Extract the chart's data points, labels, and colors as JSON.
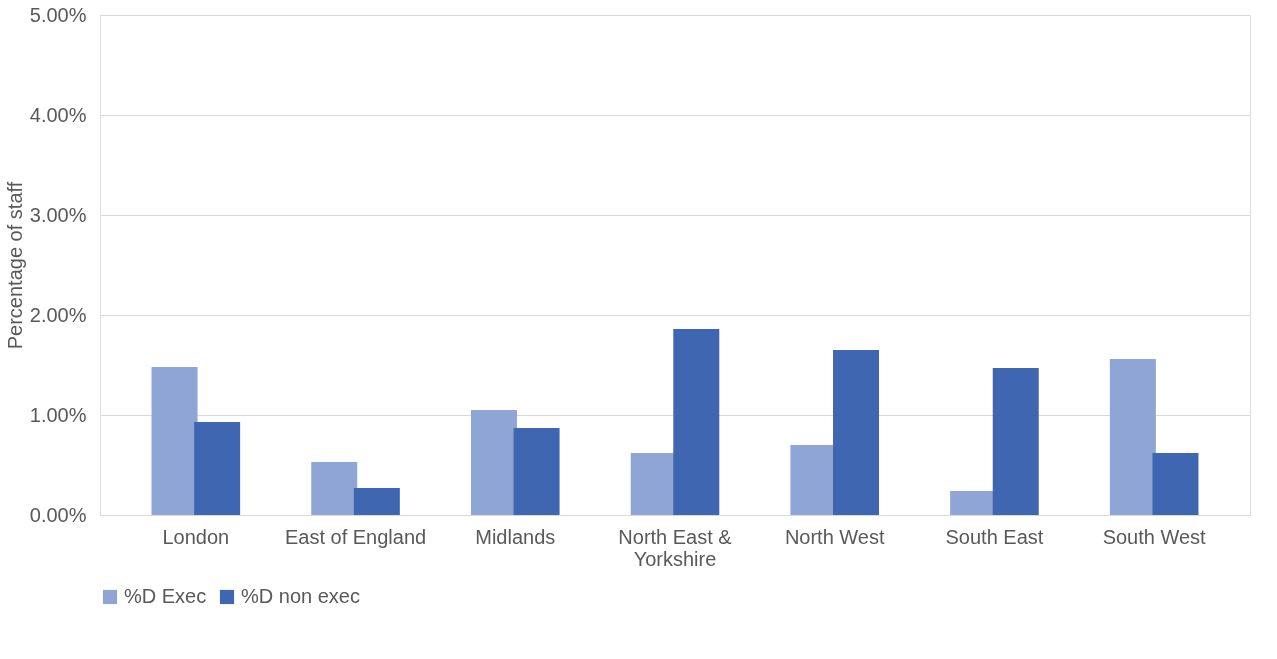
{
  "chart_data": {
    "type": "bar",
    "ylabel": "Percentage of staff",
    "categories": [
      "London",
      "East of England",
      "Midlands",
      "North East & Yorkshire",
      "North West",
      "South East",
      "South West"
    ],
    "series": [
      {
        "name": "%D Exec",
        "color": "#8fa5d6",
        "values": [
          1.48,
          0.53,
          1.05,
          0.62,
          0.7,
          0.24,
          1.56
        ]
      },
      {
        "name": "%D non exec",
        "color": "#3f66b0",
        "values": [
          0.93,
          0.27,
          0.87,
          1.86,
          1.65,
          1.47,
          0.62
        ]
      }
    ],
    "ylim": [
      0,
      5
    ],
    "yticks": [
      {
        "value": 0,
        "label": "0.00%"
      },
      {
        "value": 1,
        "label": "1.00%"
      },
      {
        "value": 2,
        "label": "2.00%"
      },
      {
        "value": 3,
        "label": "3.00%"
      },
      {
        "value": 4,
        "label": "4.00%"
      },
      {
        "value": 5,
        "label": "5.00%"
      }
    ],
    "grid": "y",
    "legend": "bottom"
  }
}
